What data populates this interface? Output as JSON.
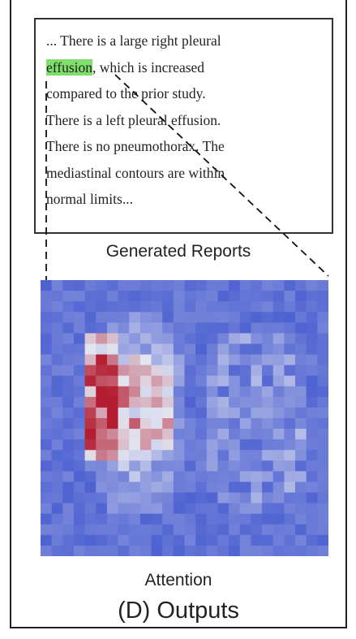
{
  "report": {
    "lines": [
      "... There is a large right pleural",
      ", which is increased",
      "compared to the prior study.",
      "There is a left pleural effusion.",
      "There is no pneumothorax. The",
      "mediastinal contours are within",
      "normal limits..."
    ],
    "highlight": "effusion"
  },
  "report_label": "Generated Reports",
  "heatmap_label": "Attention",
  "panel_title": "(D) Outputs"
}
